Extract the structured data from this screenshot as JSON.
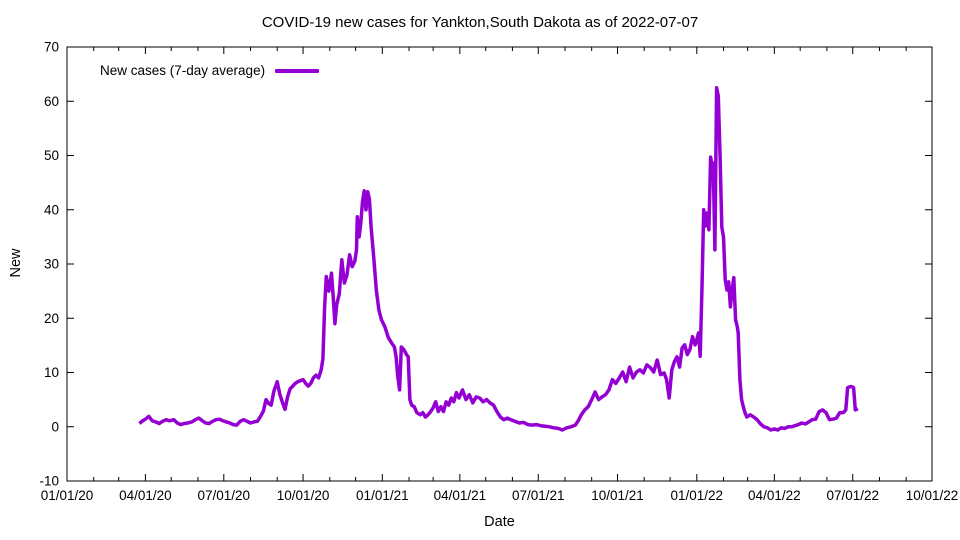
{
  "chart_data": {
    "type": "line",
    "title": "COVID-19 new cases for Yankton,South Dakota as of 2022-07-07",
    "xlabel": "Date",
    "ylabel": "New",
    "legend": {
      "label": "New cases (7-day average)",
      "position": "top-left-inside"
    },
    "line_color": "#9400D3",
    "axis_color": "#000000",
    "background": "#ffffff",
    "grid": "off",
    "ylim": [
      -10,
      70
    ],
    "y_ticks": [
      -10,
      0,
      10,
      20,
      30,
      40,
      50,
      60,
      70
    ],
    "xlim": [
      "2020-01-01",
      "2022-10-01"
    ],
    "x_ticks": [
      {
        "label": "01/01/20",
        "date": "2020-01-01"
      },
      {
        "label": "04/01/20",
        "date": "2020-04-01"
      },
      {
        "label": "07/01/20",
        "date": "2020-07-01"
      },
      {
        "label": "10/01/20",
        "date": "2020-10-01"
      },
      {
        "label": "01/01/21",
        "date": "2021-01-01"
      },
      {
        "label": "04/01/21",
        "date": "2021-04-01"
      },
      {
        "label": "07/01/21",
        "date": "2021-07-01"
      },
      {
        "label": "10/01/21",
        "date": "2021-10-01"
      },
      {
        "label": "01/01/22",
        "date": "2022-01-01"
      },
      {
        "label": "04/01/22",
        "date": "2022-04-01"
      },
      {
        "label": "07/01/22",
        "date": "2022-07-01"
      },
      {
        "label": "10/01/22",
        "date": "2022-10-01"
      }
    ],
    "x_minor_ticks": "monthly",
    "series": [
      {
        "name": "New cases (7-day average)",
        "points": [
          [
            "2020-03-25",
            0.6
          ],
          [
            "2020-03-28",
            1.0
          ],
          [
            "2020-04-01",
            1.4
          ],
          [
            "2020-04-05",
            1.9
          ],
          [
            "2020-04-09",
            1.1
          ],
          [
            "2020-04-13",
            0.9
          ],
          [
            "2020-04-17",
            0.6
          ],
          [
            "2020-04-21",
            1.0
          ],
          [
            "2020-04-25",
            1.3
          ],
          [
            "2020-04-29",
            1.1
          ],
          [
            "2020-05-04",
            1.3
          ],
          [
            "2020-05-08",
            0.7
          ],
          [
            "2020-05-12",
            0.4
          ],
          [
            "2020-05-16",
            0.6
          ],
          [
            "2020-05-20",
            0.7
          ],
          [
            "2020-05-25",
            0.9
          ],
          [
            "2020-05-29",
            1.3
          ],
          [
            "2020-06-02",
            1.6
          ],
          [
            "2020-06-06",
            1.1
          ],
          [
            "2020-06-10",
            0.7
          ],
          [
            "2020-06-14",
            0.6
          ],
          [
            "2020-06-18",
            1.0
          ],
          [
            "2020-06-22",
            1.3
          ],
          [
            "2020-06-26",
            1.4
          ],
          [
            "2020-06-30",
            1.1
          ],
          [
            "2020-07-04",
            0.9
          ],
          [
            "2020-07-08",
            0.7
          ],
          [
            "2020-07-12",
            0.4
          ],
          [
            "2020-07-16",
            0.3
          ],
          [
            "2020-07-20",
            1.0
          ],
          [
            "2020-07-24",
            1.3
          ],
          [
            "2020-07-28",
            1.0
          ],
          [
            "2020-08-01",
            0.7
          ],
          [
            "2020-08-05",
            0.9
          ],
          [
            "2020-08-09",
            1.0
          ],
          [
            "2020-08-13",
            2.0
          ],
          [
            "2020-08-16",
            2.9
          ],
          [
            "2020-08-19",
            5.0
          ],
          [
            "2020-08-22",
            4.3
          ],
          [
            "2020-08-25",
            4.0
          ],
          [
            "2020-08-28",
            6.5
          ],
          [
            "2020-09-01",
            8.3
          ],
          [
            "2020-09-04",
            6.0
          ],
          [
            "2020-09-07",
            4.5
          ],
          [
            "2020-09-10",
            3.2
          ],
          [
            "2020-09-13",
            5.5
          ],
          [
            "2020-09-16",
            7.0
          ],
          [
            "2020-09-19",
            7.5
          ],
          [
            "2020-09-22",
            8.0
          ],
          [
            "2020-09-25",
            8.3
          ],
          [
            "2020-09-28",
            8.5
          ],
          [
            "2020-10-01",
            8.7
          ],
          [
            "2020-10-04",
            8.0
          ],
          [
            "2020-10-07",
            7.5
          ],
          [
            "2020-10-10",
            8.0
          ],
          [
            "2020-10-13",
            9.0
          ],
          [
            "2020-10-16",
            9.5
          ],
          [
            "2020-10-19",
            9.0
          ],
          [
            "2020-10-22",
            10.5
          ],
          [
            "2020-10-24",
            12.5
          ],
          [
            "2020-10-26",
            22.0
          ],
          [
            "2020-10-28",
            27.7
          ],
          [
            "2020-10-31",
            25.0
          ],
          [
            "2020-11-03",
            28.3
          ],
          [
            "2020-11-05",
            24.0
          ],
          [
            "2020-11-07",
            19.0
          ],
          [
            "2020-11-09",
            22.5
          ],
          [
            "2020-11-12",
            24.5
          ],
          [
            "2020-11-15",
            30.8
          ],
          [
            "2020-11-18",
            26.5
          ],
          [
            "2020-11-21",
            28.0
          ],
          [
            "2020-11-24",
            31.7
          ],
          [
            "2020-11-27",
            29.5
          ],
          [
            "2020-11-30",
            30.5
          ],
          [
            "2020-12-02",
            32.6
          ],
          [
            "2020-12-03",
            38.7
          ],
          [
            "2020-12-05",
            35.0
          ],
          [
            "2020-12-07",
            37.5
          ],
          [
            "2020-12-09",
            41.5
          ],
          [
            "2020-12-11",
            43.5
          ],
          [
            "2020-12-13",
            40.0
          ],
          [
            "2020-12-15",
            43.3
          ],
          [
            "2020-12-17",
            42.0
          ],
          [
            "2020-12-19",
            36.8
          ],
          [
            "2020-12-22",
            31.3
          ],
          [
            "2020-12-25",
            25.2
          ],
          [
            "2020-12-28",
            21.5
          ],
          [
            "2020-12-31",
            19.7
          ],
          [
            "2021-01-04",
            18.4
          ],
          [
            "2021-01-08",
            16.4
          ],
          [
            "2021-01-12",
            15.4
          ],
          [
            "2021-01-15",
            14.7
          ],
          [
            "2021-01-17",
            12.9
          ],
          [
            "2021-01-19",
            9.2
          ],
          [
            "2021-01-21",
            6.8
          ],
          [
            "2021-01-23",
            14.7
          ],
          [
            "2021-01-26",
            14.2
          ],
          [
            "2021-01-29",
            13.3
          ],
          [
            "2021-01-31",
            12.9
          ],
          [
            "2021-02-02",
            5.0
          ],
          [
            "2021-02-04",
            4.0
          ],
          [
            "2021-02-07",
            3.7
          ],
          [
            "2021-02-10",
            2.6
          ],
          [
            "2021-02-14",
            2.2
          ],
          [
            "2021-02-17",
            2.6
          ],
          [
            "2021-02-20",
            1.8
          ],
          [
            "2021-02-23",
            2.2
          ],
          [
            "2021-02-26",
            2.8
          ],
          [
            "2021-03-01",
            3.5
          ],
          [
            "2021-03-04",
            4.6
          ],
          [
            "2021-03-07",
            2.8
          ],
          [
            "2021-03-10",
            3.7
          ],
          [
            "2021-03-13",
            2.8
          ],
          [
            "2021-03-16",
            4.6
          ],
          [
            "2021-03-19",
            4.0
          ],
          [
            "2021-03-22",
            5.3
          ],
          [
            "2021-03-25",
            4.6
          ],
          [
            "2021-03-28",
            6.3
          ],
          [
            "2021-03-31",
            5.3
          ],
          [
            "2021-04-04",
            6.8
          ],
          [
            "2021-04-08",
            5.0
          ],
          [
            "2021-04-12",
            5.9
          ],
          [
            "2021-04-16",
            4.4
          ],
          [
            "2021-04-20",
            5.5
          ],
          [
            "2021-04-24",
            5.3
          ],
          [
            "2021-04-28",
            4.6
          ],
          [
            "2021-05-02",
            5.0
          ],
          [
            "2021-05-06",
            4.4
          ],
          [
            "2021-05-10",
            4.0
          ],
          [
            "2021-05-14",
            2.8
          ],
          [
            "2021-05-18",
            1.8
          ],
          [
            "2021-05-22",
            1.3
          ],
          [
            "2021-05-26",
            1.6
          ],
          [
            "2021-05-30",
            1.3
          ],
          [
            "2021-06-04",
            1.0
          ],
          [
            "2021-06-09",
            0.7
          ],
          [
            "2021-06-14",
            0.8
          ],
          [
            "2021-06-19",
            0.4
          ],
          [
            "2021-06-24",
            0.3
          ],
          [
            "2021-06-29",
            0.4
          ],
          [
            "2021-07-04",
            0.2
          ],
          [
            "2021-07-09",
            0.1
          ],
          [
            "2021-07-14",
            0.0
          ],
          [
            "2021-07-19",
            -0.2
          ],
          [
            "2021-07-24",
            -0.3
          ],
          [
            "2021-07-29",
            -0.6
          ],
          [
            "2021-08-03",
            -0.2
          ],
          [
            "2021-08-08",
            0.0
          ],
          [
            "2021-08-13",
            0.3
          ],
          [
            "2021-08-16",
            1.0
          ],
          [
            "2021-08-20",
            2.2
          ],
          [
            "2021-08-24",
            3.1
          ],
          [
            "2021-08-28",
            3.7
          ],
          [
            "2021-09-01",
            5.0
          ],
          [
            "2021-09-05",
            6.4
          ],
          [
            "2021-09-09",
            5.0
          ],
          [
            "2021-09-13",
            5.5
          ],
          [
            "2021-09-17",
            5.9
          ],
          [
            "2021-09-21",
            6.8
          ],
          [
            "2021-09-25",
            8.7
          ],
          [
            "2021-09-29",
            8.0
          ],
          [
            "2021-10-03",
            9.0
          ],
          [
            "2021-10-07",
            10.1
          ],
          [
            "2021-10-11",
            8.3
          ],
          [
            "2021-10-15",
            11.0
          ],
          [
            "2021-10-19",
            9.0
          ],
          [
            "2021-10-23",
            10.1
          ],
          [
            "2021-10-27",
            10.5
          ],
          [
            "2021-10-31",
            9.9
          ],
          [
            "2021-11-04",
            11.4
          ],
          [
            "2021-11-08",
            10.9
          ],
          [
            "2021-11-12",
            10.1
          ],
          [
            "2021-11-16",
            12.3
          ],
          [
            "2021-11-20",
            9.6
          ],
          [
            "2021-11-24",
            9.9
          ],
          [
            "2021-11-27",
            8.7
          ],
          [
            "2021-11-30",
            5.3
          ],
          [
            "2021-12-03",
            10.5
          ],
          [
            "2021-12-06",
            12.0
          ],
          [
            "2021-12-09",
            12.9
          ],
          [
            "2021-12-12",
            11.0
          ],
          [
            "2021-12-15",
            14.5
          ],
          [
            "2021-12-18",
            15.1
          ],
          [
            "2021-12-21",
            13.3
          ],
          [
            "2021-12-24",
            14.2
          ],
          [
            "2021-12-27",
            16.6
          ],
          [
            "2021-12-30",
            15.1
          ],
          [
            "2022-01-01",
            16.0
          ],
          [
            "2022-01-03",
            17.3
          ],
          [
            "2022-01-05",
            13.0
          ],
          [
            "2022-01-07",
            25.8
          ],
          [
            "2022-01-09",
            40.0
          ],
          [
            "2022-01-11",
            37.0
          ],
          [
            "2022-01-13",
            39.4
          ],
          [
            "2022-01-15",
            36.3
          ],
          [
            "2022-01-17",
            49.7
          ],
          [
            "2022-01-19",
            47.9
          ],
          [
            "2022-01-20",
            48.6
          ],
          [
            "2022-01-22",
            32.6
          ],
          [
            "2022-01-24",
            62.5
          ],
          [
            "2022-01-26",
            61.0
          ],
          [
            "2022-01-28",
            49.7
          ],
          [
            "2022-01-30",
            36.8
          ],
          [
            "2022-02-01",
            35.0
          ],
          [
            "2022-02-03",
            27.1
          ],
          [
            "2022-02-05",
            25.2
          ],
          [
            "2022-02-07",
            26.7
          ],
          [
            "2022-02-09",
            22.1
          ],
          [
            "2022-02-11",
            25.2
          ],
          [
            "2022-02-13",
            27.5
          ],
          [
            "2022-02-15",
            19.7
          ],
          [
            "2022-02-17",
            18.4
          ],
          [
            "2022-02-18",
            17.3
          ],
          [
            "2022-02-20",
            8.7
          ],
          [
            "2022-02-22",
            5.0
          ],
          [
            "2022-02-24",
            3.7
          ],
          [
            "2022-02-26",
            2.6
          ],
          [
            "2022-02-28",
            1.8
          ],
          [
            "2022-03-04",
            2.2
          ],
          [
            "2022-03-08",
            1.8
          ],
          [
            "2022-03-12",
            1.3
          ],
          [
            "2022-03-16",
            0.5
          ],
          [
            "2022-03-20",
            0.0
          ],
          [
            "2022-03-24",
            -0.2
          ],
          [
            "2022-03-28",
            -0.6
          ],
          [
            "2022-04-01",
            -0.4
          ],
          [
            "2022-04-05",
            -0.6
          ],
          [
            "2022-04-09",
            -0.2
          ],
          [
            "2022-04-13",
            -0.3
          ],
          [
            "2022-04-17",
            0.0
          ],
          [
            "2022-04-21",
            0.0
          ],
          [
            "2022-04-25",
            0.2
          ],
          [
            "2022-04-29",
            0.4
          ],
          [
            "2022-05-03",
            0.7
          ],
          [
            "2022-05-07",
            0.5
          ],
          [
            "2022-05-11",
            0.9
          ],
          [
            "2022-05-15",
            1.3
          ],
          [
            "2022-05-19",
            1.4
          ],
          [
            "2022-05-23",
            2.8
          ],
          [
            "2022-05-27",
            3.1
          ],
          [
            "2022-05-31",
            2.6
          ],
          [
            "2022-06-04",
            1.3
          ],
          [
            "2022-06-08",
            1.4
          ],
          [
            "2022-06-12",
            1.6
          ],
          [
            "2022-06-16",
            2.6
          ],
          [
            "2022-06-20",
            2.6
          ],
          [
            "2022-06-23",
            3.1
          ],
          [
            "2022-06-25",
            7.2
          ],
          [
            "2022-06-28",
            7.4
          ],
          [
            "2022-06-30",
            7.4
          ],
          [
            "2022-07-02",
            7.2
          ],
          [
            "2022-07-04",
            3.1
          ],
          [
            "2022-07-07",
            3.3
          ]
        ]
      }
    ]
  }
}
